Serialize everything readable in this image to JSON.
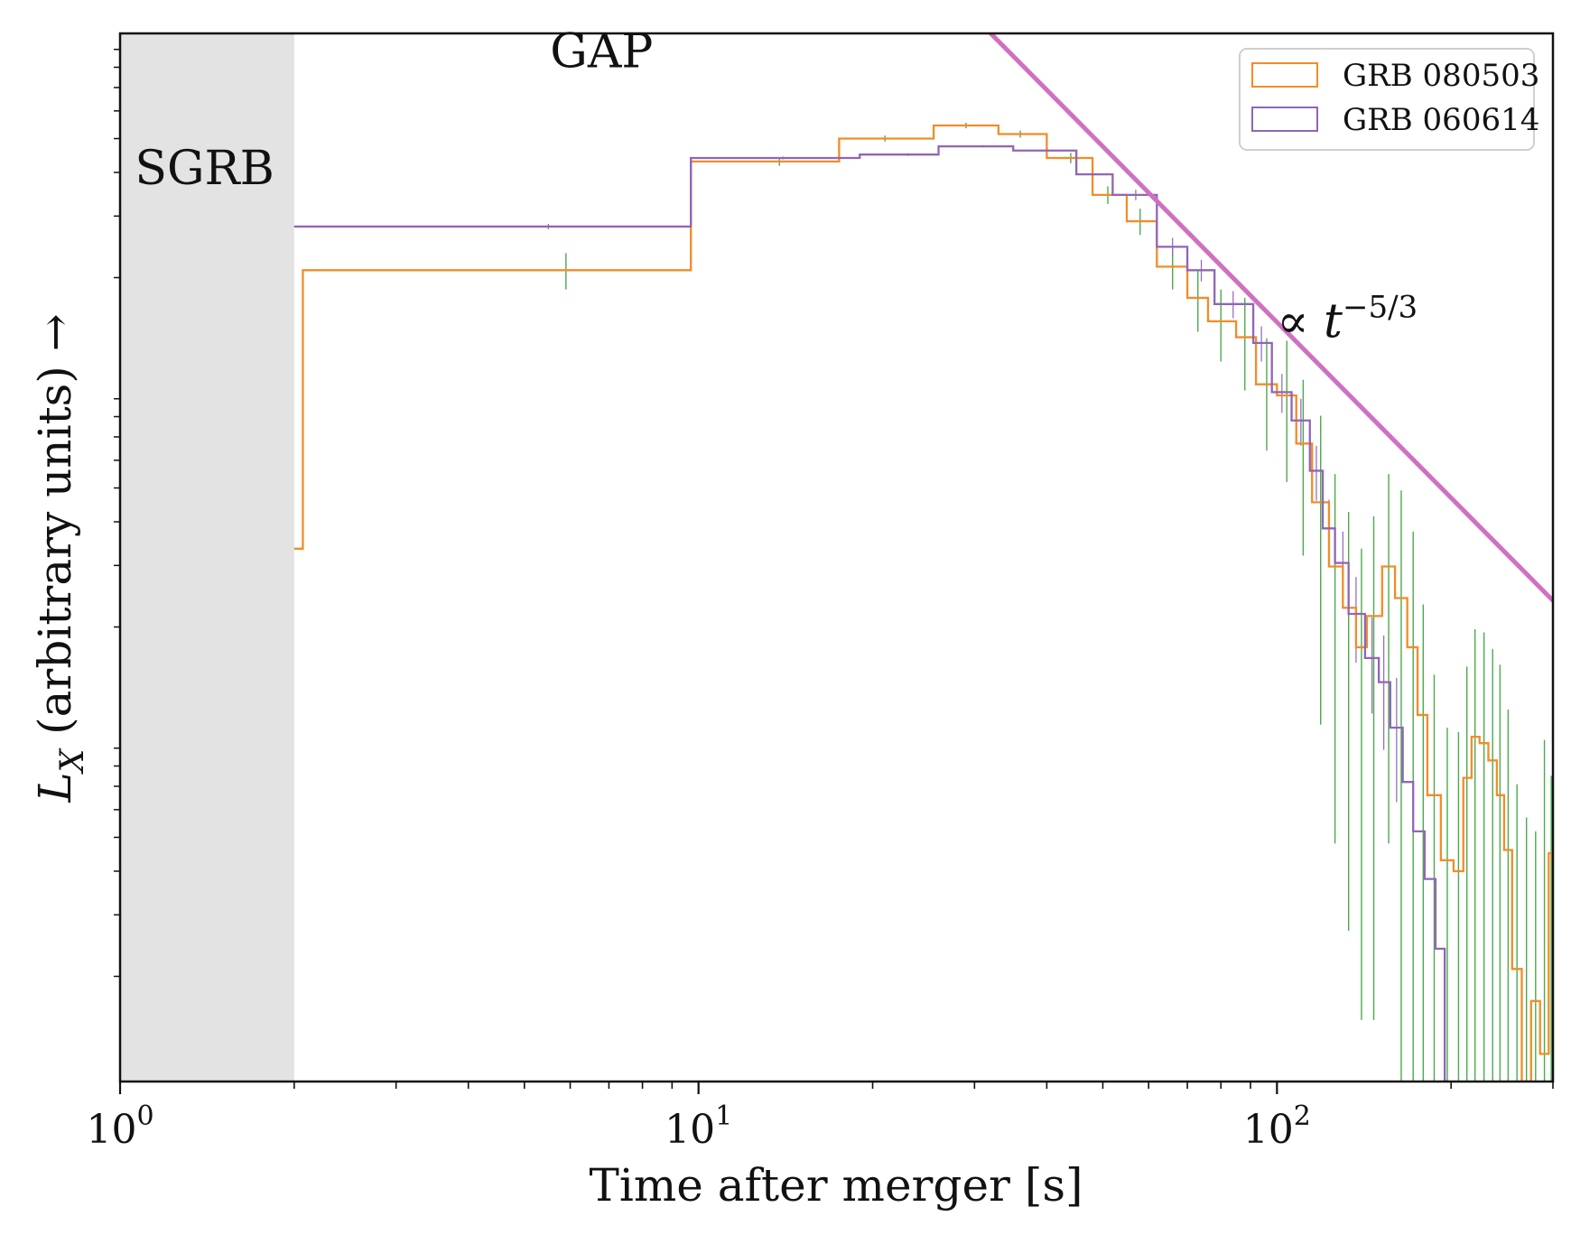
{
  "chart_data": {
    "type": "line",
    "title": "",
    "xlabel": "Time after merger [s]",
    "ylabel_main": "L",
    "ylabel_sub": "X",
    "ylabel_rest": " (arbitrary units) →",
    "x_scale": "log",
    "y_scale": "log",
    "xlim": [
      1,
      300
    ],
    "ylim": [
      0.001,
      1
    ],
    "grid": false,
    "legend_position": "top-right",
    "x_ticks": [
      {
        "value": 1,
        "base": "10",
        "exp": "0"
      },
      {
        "value": 10,
        "base": "10",
        "exp": "1"
      },
      {
        "value": 100,
        "base": "10",
        "exp": "2"
      }
    ],
    "shaded_region": {
      "x": [
        1,
        2
      ],
      "color": "#e3e3e3"
    },
    "annotations": {
      "sgrb": {
        "text": "SGRB",
        "x": 1.4,
        "y": 0.37
      },
      "gap": {
        "text": "GAP",
        "x": 6.8,
        "y": 0.8
      },
      "powerlaw": {
        "prefix": "∝ ",
        "var": "t",
        "exp": "−5/3",
        "x": 100,
        "y": 0.135
      }
    },
    "powerlaw_line": {
      "color": "#d070c0",
      "x": [
        32,
        300
      ],
      "y": [
        1.0,
        0.0238
      ]
    },
    "series": [
      {
        "name": "GRB 080503",
        "color": "#f28c28",
        "steps": [
          [
            2.0,
            0.0335
          ],
          [
            2.07,
            0.21
          ],
          [
            9.7,
            0.43
          ],
          [
            17.5,
            0.5
          ],
          [
            25.5,
            0.545
          ],
          [
            33.0,
            0.515
          ],
          [
            40.0,
            0.44
          ],
          [
            48.0,
            0.345
          ],
          [
            55.0,
            0.29
          ],
          [
            62.0,
            0.215
          ],
          [
            70.0,
            0.175
          ],
          [
            76.0,
            0.15
          ],
          [
            85.0,
            0.135
          ],
          [
            92.0,
            0.099
          ],
          [
            100.0,
            0.092
          ],
          [
            108.0,
            0.067
          ],
          [
            115.0,
            0.0455
          ],
          [
            123.0,
            0.0298
          ],
          [
            130.0,
            0.0227
          ],
          [
            137.0,
            0.0175
          ],
          [
            143.0,
            0.0215
          ],
          [
            152.0,
            0.0298
          ],
          [
            160.0,
            0.0242
          ],
          [
            168.0,
            0.0175
          ],
          [
            175.0,
            0.0112
          ],
          [
            182.0,
            0.0066
          ],
          [
            192.0,
            0.0043
          ],
          [
            202.0,
            0.004
          ],
          [
            210.0,
            0.0074
          ],
          [
            217.0,
            0.0097
          ],
          [
            224.0,
            0.0093
          ],
          [
            232.0,
            0.0083
          ],
          [
            240.0,
            0.0066
          ],
          [
            247.0,
            0.0046
          ],
          [
            255.0,
            0.0021
          ],
          [
            265.0,
            0.001
          ],
          [
            275.0,
            0.0017
          ],
          [
            285.0,
            0.0012
          ],
          [
            295.0,
            0.0045
          ],
          [
            300.0,
            0.0025
          ]
        ]
      },
      {
        "name": "GRB 060614",
        "color": "#9065b8",
        "steps": [
          [
            2.0,
            0.28
          ],
          [
            9.7,
            0.44
          ],
          [
            19.0,
            0.45
          ],
          [
            26.0,
            0.475
          ],
          [
            35.0,
            0.462
          ],
          [
            45.0,
            0.395
          ],
          [
            52.0,
            0.345
          ],
          [
            62.0,
            0.245
          ],
          [
            70.0,
            0.21
          ],
          [
            78.0,
            0.168
          ],
          [
            91.0,
            0.13
          ],
          [
            98.0,
            0.094
          ],
          [
            106.0,
            0.078
          ],
          [
            114.0,
            0.056
          ],
          [
            120.0,
            0.0383
          ],
          [
            126.0,
            0.0305
          ],
          [
            133.0,
            0.0218
          ],
          [
            142.0,
            0.0163
          ],
          [
            150.0,
            0.0139
          ],
          [
            157.0,
            0.0103
          ],
          [
            165.0,
            0.0072
          ],
          [
            172.0,
            0.0052
          ],
          [
            180.0,
            0.0038
          ],
          [
            188.0,
            0.0024
          ],
          [
            195.0,
            0.001
          ]
        ]
      }
    ],
    "error_bars": {
      "color": "#4caa4c",
      "points": [
        [
          5.9,
          0.21,
          0.025
        ],
        [
          13.8,
          0.43,
          0.012
        ],
        [
          21.0,
          0.5,
          0.01
        ],
        [
          29.0,
          0.545,
          0.01
        ],
        [
          36.0,
          0.515,
          0.012
        ],
        [
          44.0,
          0.44,
          0.015
        ],
        [
          51.0,
          0.345,
          0.02
        ],
        [
          58.0,
          0.29,
          0.025
        ],
        [
          66.0,
          0.215,
          0.03
        ],
        [
          73.0,
          0.175,
          0.035
        ],
        [
          80.0,
          0.15,
          0.035
        ],
        [
          88.0,
          0.135,
          0.04
        ],
        [
          96.0,
          0.099,
          0.035
        ],
        [
          104.0,
          0.092,
          0.04
        ],
        [
          111.0,
          0.067,
          0.035
        ],
        [
          119.0,
          0.0455,
          0.035
        ],
        [
          126.0,
          0.0298,
          0.025
        ],
        [
          133.0,
          0.0227,
          0.02
        ],
        [
          140.0,
          0.0175,
          0.016
        ],
        [
          147.0,
          0.0215,
          0.02
        ],
        [
          156.0,
          0.0298,
          0.025
        ],
        [
          164.0,
          0.0242,
          0.025
        ],
        [
          172.0,
          0.0175,
          0.02
        ],
        [
          179.0,
          0.0112,
          0.012
        ],
        [
          187.0,
          0.0066,
          0.008
        ],
        [
          197.0,
          0.0043,
          0.006
        ],
        [
          206.0,
          0.004,
          0.006
        ],
        [
          213.0,
          0.0074,
          0.008
        ],
        [
          220.0,
          0.0097,
          0.01
        ],
        [
          228.0,
          0.0093,
          0.01
        ],
        [
          236.0,
          0.0083,
          0.009
        ],
        [
          243.0,
          0.0066,
          0.009
        ],
        [
          251.0,
          0.0046,
          0.007
        ],
        [
          260.0,
          0.0021,
          0.005
        ],
        [
          270.0,
          0.0017,
          0.004
        ],
        [
          280.0,
          0.0012,
          0.004
        ],
        [
          290.0,
          0.0045,
          0.005
        ],
        [
          298.0,
          0.0025,
          0.005
        ]
      ]
    },
    "purple_error_bars": {
      "color": "#9065b8",
      "points": [
        [
          5.5,
          0.28,
          0.005
        ],
        [
          14.0,
          0.44,
          0.004
        ],
        [
          23.0,
          0.45,
          0.004
        ],
        [
          31.0,
          0.475,
          0.004
        ],
        [
          40.0,
          0.462,
          0.005
        ],
        [
          48.0,
          0.395,
          0.01
        ],
        [
          57.0,
          0.345,
          0.012
        ],
        [
          66.0,
          0.245,
          0.015
        ],
        [
          74.0,
          0.21,
          0.015
        ],
        [
          84.0,
          0.168,
          0.015
        ],
        [
          94.0,
          0.13,
          0.015
        ],
        [
          102.0,
          0.094,
          0.012
        ],
        [
          110.0,
          0.078,
          0.012
        ],
        [
          117.0,
          0.056,
          0.01
        ],
        [
          123.0,
          0.0383,
          0.008
        ],
        [
          130.0,
          0.0305,
          0.007
        ],
        [
          137.0,
          0.0218,
          0.006
        ],
        [
          146.0,
          0.0163,
          0.005
        ],
        [
          153.0,
          0.0139,
          0.005
        ],
        [
          161.0,
          0.0103,
          0.004
        ]
      ]
    }
  }
}
